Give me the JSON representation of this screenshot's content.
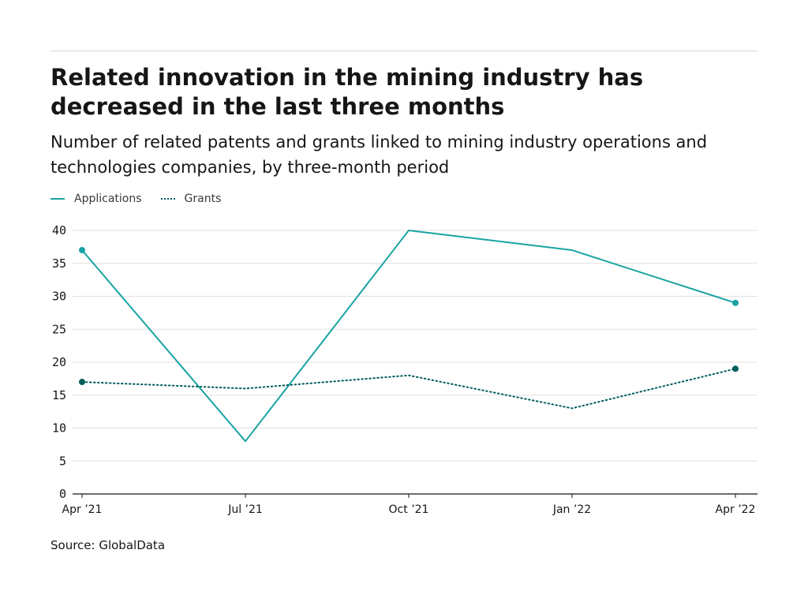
{
  "chart_data": {
    "type": "line",
    "title": "Related innovation in the mining industry has decreased in the last three months",
    "subtitle": "Number of related patents and grants linked to mining industry operations and technologies companies, by three-month period",
    "categories": [
      "Apr ’21",
      "Jul ’21",
      "Oct ’21",
      "Jan ’22",
      "Apr ’22"
    ],
    "series": [
      {
        "name": "Applications",
        "values": [
          37,
          8,
          40,
          37,
          29
        ],
        "color": "#1aa3a3",
        "style": "solid"
      },
      {
        "name": "Grants",
        "values": [
          17,
          16,
          18,
          13,
          19
        ],
        "color": "#005d5d",
        "style": "dotted"
      }
    ],
    "yticks": [
      0,
      5,
      10,
      15,
      20,
      25,
      30,
      35,
      40
    ],
    "ylim": [
      0,
      40
    ],
    "grid": true,
    "legend_position": "top-left",
    "endpoint_markers": true,
    "source": "Source: GlobalData"
  }
}
